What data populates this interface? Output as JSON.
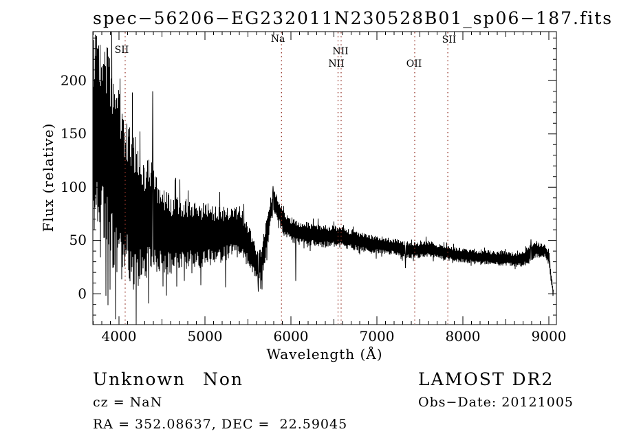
{
  "marker_color": "#963428",
  "chart_data": {
    "type": "line",
    "title": "spec−56206−EG232011N230528B01_sp06−187.fits",
    "xlabel": "Wavelength (Å)",
    "ylabel": "Flux (relative)",
    "xlim": [
      3696,
      9088
    ],
    "ylim": [
      -29,
      246
    ],
    "grid": false,
    "x_major_ticks": [
      4000,
      5000,
      6000,
      7000,
      8000,
      9000
    ],
    "y_major_ticks": [
      0,
      50,
      100,
      150,
      200
    ],
    "x_minor_step": 100,
    "x_medium_step": 500,
    "y_minor_step": 10,
    "line_markers": [
      {
        "label": "SII",
        "wavelength": 4072
      },
      {
        "label": "Na",
        "wavelength": 5890
      },
      {
        "label": "NII",
        "wavelength": 6548
      },
      {
        "label": "NII",
        "wavelength": 6584
      },
      {
        "label": "OII",
        "wavelength": 7440
      },
      {
        "label": "SII",
        "wavelength": 7825
      }
    ],
    "series": [
      {
        "name": "flux",
        "style": "noisy-spectrum",
        "sample_step_angstrom": 4,
        "noise_seed": 11,
        "envelope_points": [
          [
            3696,
            150,
            95
          ],
          [
            3750,
            156,
            90
          ],
          [
            3800,
            150,
            92
          ],
          [
            3850,
            140,
            96
          ],
          [
            3900,
            128,
            100
          ],
          [
            3950,
            115,
            100
          ],
          [
            4000,
            102,
            88
          ],
          [
            4050,
            92,
            80
          ],
          [
            4100,
            88,
            72
          ],
          [
            4150,
            82,
            75
          ],
          [
            4200,
            76,
            80
          ],
          [
            4250,
            70,
            60
          ],
          [
            4300,
            68,
            56
          ],
          [
            4350,
            74,
            58
          ],
          [
            4400,
            70,
            50
          ],
          [
            4450,
            64,
            46
          ],
          [
            4500,
            60,
            42
          ],
          [
            4550,
            58,
            40
          ],
          [
            4600,
            56,
            38
          ],
          [
            4650,
            56,
            36
          ],
          [
            4700,
            55,
            36
          ],
          [
            4750,
            56,
            35
          ],
          [
            4800,
            56,
            34
          ],
          [
            4850,
            55,
            32
          ],
          [
            4900,
            55,
            32
          ],
          [
            4950,
            54,
            34
          ],
          [
            5000,
            55,
            30
          ],
          [
            5050,
            56,
            30
          ],
          [
            5100,
            56,
            28
          ],
          [
            5150,
            55,
            28
          ],
          [
            5200,
            56,
            26
          ],
          [
            5250,
            57,
            26
          ],
          [
            5300,
            58,
            25
          ],
          [
            5350,
            58,
            24
          ],
          [
            5400,
            56,
            24
          ],
          [
            5450,
            52,
            22
          ],
          [
            5500,
            46,
            20
          ],
          [
            5550,
            38,
            18
          ],
          [
            5600,
            28,
            16
          ],
          [
            5650,
            27,
            15
          ],
          [
            5700,
            45,
            18
          ],
          [
            5750,
            72,
            16
          ],
          [
            5800,
            88,
            11
          ],
          [
            5850,
            78,
            12
          ],
          [
            5900,
            70,
            12
          ],
          [
            5950,
            64,
            12
          ],
          [
            6000,
            60,
            12
          ],
          [
            6100,
            57,
            12
          ],
          [
            6200,
            56,
            11
          ],
          [
            6300,
            55,
            11
          ],
          [
            6400,
            54,
            11
          ],
          [
            6500,
            54,
            10
          ],
          [
            6600,
            53,
            10
          ],
          [
            6700,
            51,
            10
          ],
          [
            6800,
            49,
            9
          ],
          [
            6900,
            47,
            9
          ],
          [
            7000,
            46,
            9
          ],
          [
            7100,
            45,
            8
          ],
          [
            7200,
            44,
            8
          ],
          [
            7300,
            42,
            8
          ],
          [
            7400,
            41,
            8
          ],
          [
            7500,
            41,
            8
          ],
          [
            7600,
            42,
            8
          ],
          [
            7700,
            40,
            7
          ],
          [
            7800,
            38,
            7
          ],
          [
            7900,
            37,
            7
          ],
          [
            8000,
            36,
            7
          ],
          [
            8100,
            35,
            7
          ],
          [
            8200,
            34,
            7
          ],
          [
            8300,
            34,
            7
          ],
          [
            8400,
            33,
            7
          ],
          [
            8500,
            33,
            7
          ],
          [
            8600,
            32,
            7
          ],
          [
            8700,
            33,
            8
          ],
          [
            8800,
            38,
            9
          ],
          [
            8850,
            42,
            8
          ],
          [
            8900,
            40,
            7
          ],
          [
            8950,
            41,
            7
          ],
          [
            9000,
            34,
            8
          ],
          [
            9030,
            12,
            5
          ],
          [
            9052,
            2,
            2
          ]
        ],
        "feature_spikes": [
          [
            3960,
            -24
          ],
          [
            4200,
            -27
          ],
          [
            4390,
            190
          ],
          [
            4760,
            12
          ],
          [
            4952,
            8
          ],
          [
            5240,
            6
          ],
          [
            5620,
            2
          ],
          [
            5664,
            4
          ],
          [
            5790,
            101
          ],
          [
            6056,
            12
          ],
          [
            7330,
            24
          ],
          [
            8790,
            51
          ],
          [
            9048,
            -2
          ]
        ]
      }
    ]
  },
  "footer": {
    "class": "Unknown",
    "subclass": "Non",
    "cz": "cz = NaN",
    "ra_dec": "RA = 352.08637, DEC =  22.59045",
    "survey": "LAMOST DR2",
    "obs_date": "Obs−Date: 20121005"
  }
}
